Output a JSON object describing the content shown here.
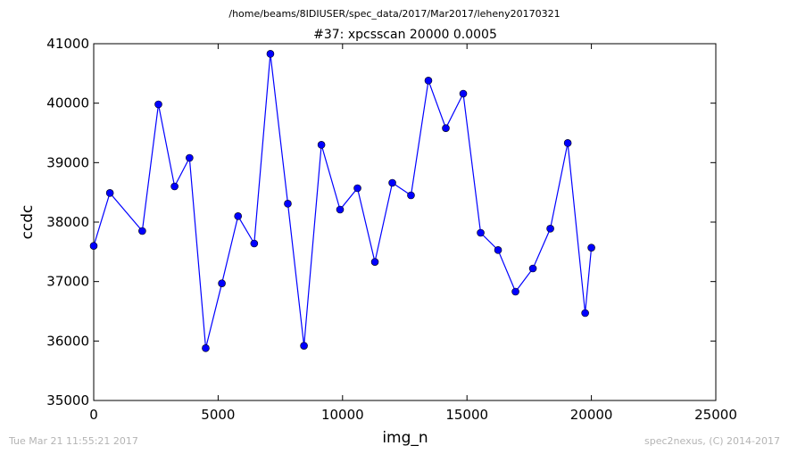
{
  "footer": {
    "timestamp": "Tue Mar 21 11:55:21 2017",
    "credit": "spec2nexus, (C) 2014-2017"
  },
  "chart_data": {
    "type": "line",
    "suptitle": "/home/beams/8IDIUSER/spec_data/2017/Mar2017/leheny20170321",
    "title": "#37: xpcsscan 20000 0.0005",
    "xlabel": "img_n",
    "ylabel": "ccdc",
    "xlim": [
      0,
      25000
    ],
    "ylim": [
      35000,
      41000
    ],
    "xticks": [
      0,
      5000,
      10000,
      15000,
      20000,
      25000
    ],
    "yticks": [
      35000,
      36000,
      37000,
      38000,
      39000,
      40000,
      41000
    ],
    "grid": false,
    "colors": {
      "series": "#0000ff",
      "axes": "#000000"
    },
    "marker": "circle",
    "series": [
      {
        "x": [
          0,
          650,
          1950,
          2600,
          3250,
          3850,
          4500,
          5150,
          5800,
          6450,
          7100,
          7800,
          8450,
          9150,
          9900,
          10600,
          11300,
          12000,
          12750,
          13450,
          14150,
          14850,
          15550,
          16250,
          16950,
          17650,
          18350,
          19050,
          19750,
          20000
        ],
        "y": [
          37600,
          38490,
          37850,
          39980,
          38600,
          39080,
          35880,
          36970,
          38100,
          37640,
          40830,
          38310,
          35920,
          39300,
          38210,
          38570,
          37330,
          38660,
          38450,
          40380,
          39580,
          40160,
          37820,
          37530,
          36830,
          37220,
          37890,
          39330,
          36470,
          37570
        ]
      }
    ]
  }
}
